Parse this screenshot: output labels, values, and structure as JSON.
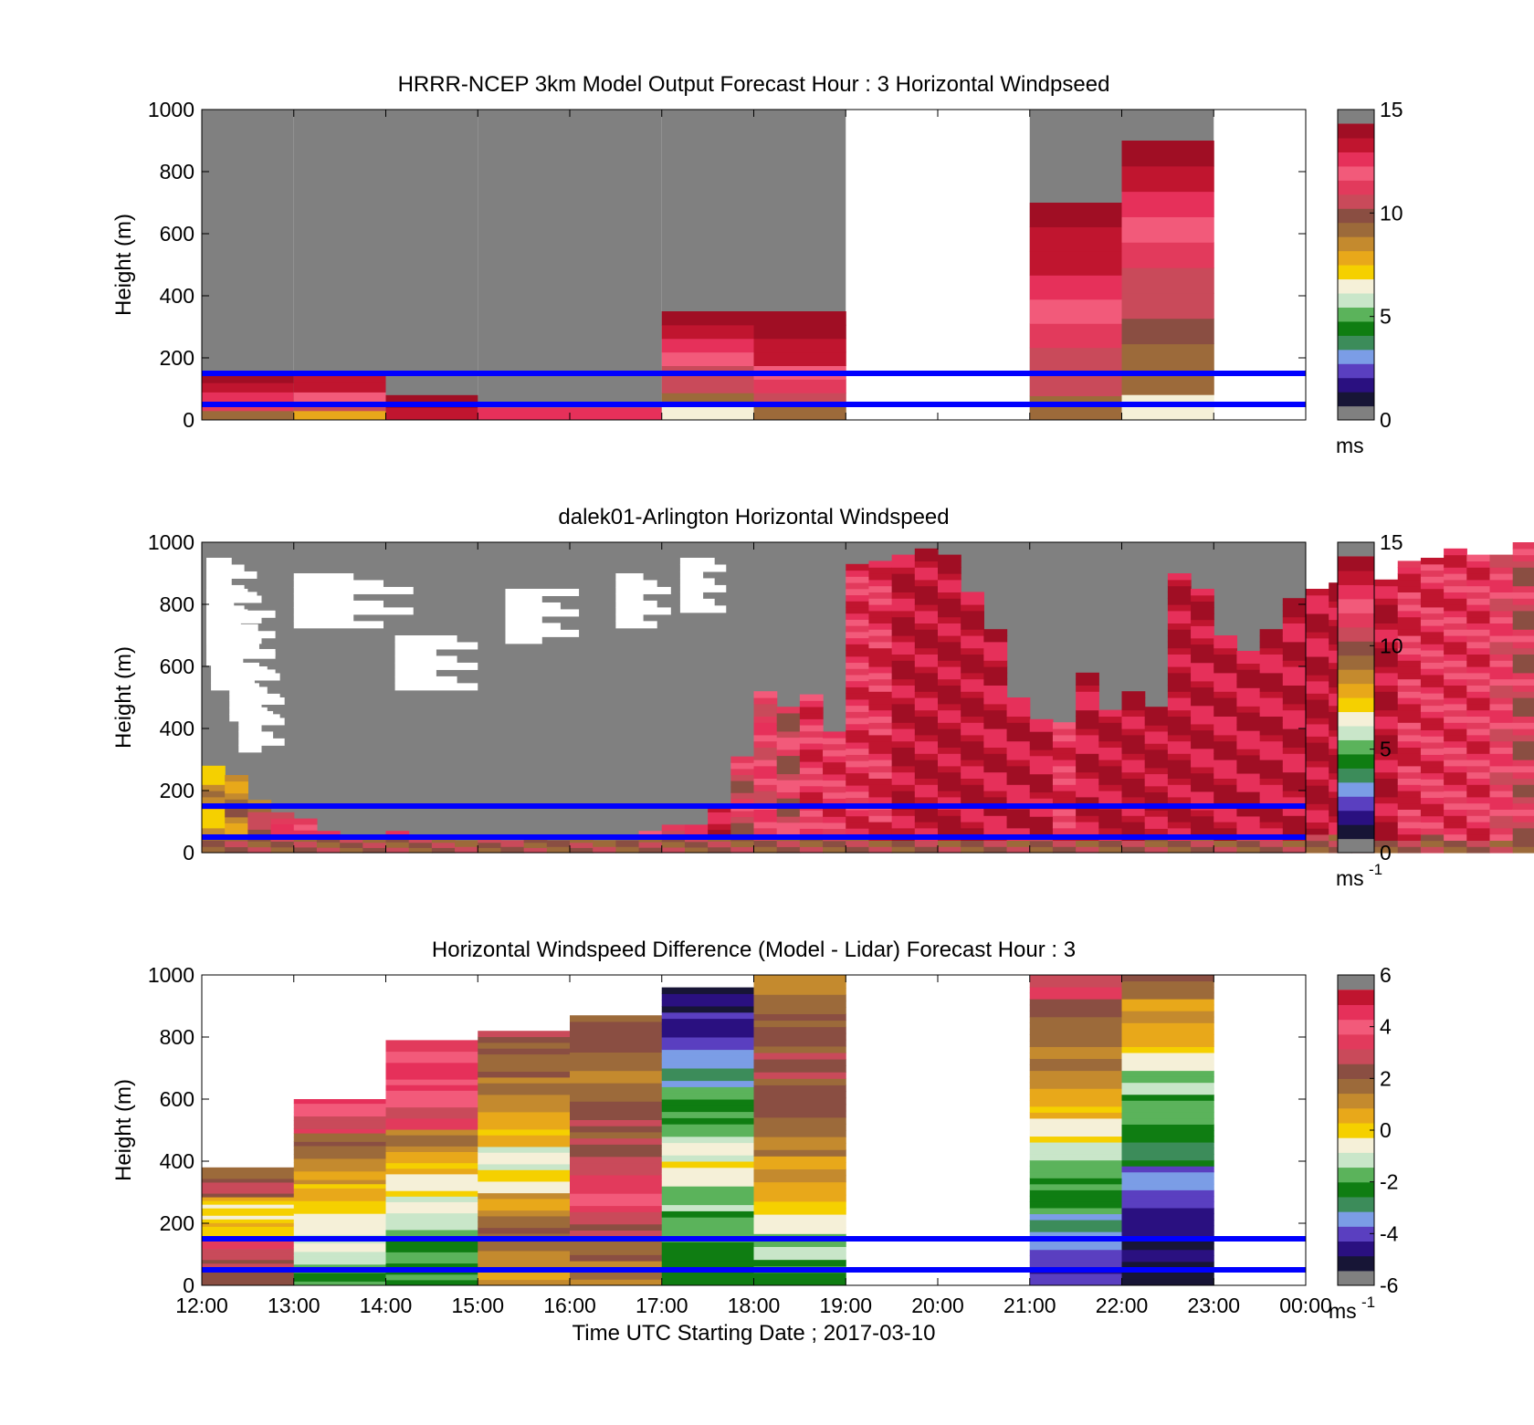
{
  "colormaps": {
    "windspeed": [
      "#171536",
      "#2a1080",
      "#5a3fc0",
      "#7b9de6",
      "#3c8c5a",
      "#0f7d12",
      "#5bb35b",
      "#c9e6c9",
      "#f5f0d8",
      "#f5d000",
      "#e8a81a",
      "#c48a2e",
      "#9c6a3a",
      "#8a4e42",
      "#c94a5a",
      "#e23a5c",
      "#f25a7a",
      "#e6305a",
      "#c0152f",
      "#a00e24"
    ],
    "difference": [
      "#171536",
      "#2a1080",
      "#5a3fc0",
      "#7b9de6",
      "#3c8c5a",
      "#0f7d12",
      "#5bb35b",
      "#c9e6c9",
      "#f5f0d8",
      "#f5d000",
      "#e8a81a",
      "#c48a2e",
      "#9c6a3a",
      "#8a4e42",
      "#c94a5a",
      "#e23a5c",
      "#f25a7a",
      "#e6305a",
      "#c0152f"
    ],
    "nodata": "#808080",
    "line_color": "#0000ff"
  },
  "shared": {
    "x_ticks": [
      "12:00",
      "13:00",
      "14:00",
      "15:00",
      "16:00",
      "17:00",
      "18:00",
      "19:00",
      "20:00",
      "21:00",
      "22:00",
      "23:00",
      "00:00"
    ],
    "y_ticks": [
      "0",
      "200",
      "400",
      "600",
      "800",
      "1000"
    ],
    "ylabel": "Height (m)",
    "xlabel": "Time UTC  Starting Date ; 2017-03-10",
    "blue_lines_m": [
      50,
      150
    ]
  },
  "chart_data": [
    {
      "type": "heatmap",
      "title": "HRRR-NCEP 3km Model Output   Forecast Hour : 3 Horizontal Windpseed",
      "ylabel": "Height (m)",
      "xlim_hours": [
        12,
        24
      ],
      "ylim": [
        0,
        1000
      ],
      "colorbar": {
        "range": [
          0,
          15
        ],
        "ticks": [
          "0",
          "5",
          "10",
          "15"
        ],
        "unit": "ms"
      },
      "columns": [
        {
          "hour": 12,
          "top_m": 150,
          "values": [
            9.5,
            11.5,
            13.0,
            14.0,
            14.5
          ]
        },
        {
          "hour": 13,
          "top_m": 150,
          "values": [
            7.5,
            10.5,
            12.5,
            13.5,
            14.0
          ]
        },
        {
          "hour": 14,
          "top_m": 80,
          "values": [
            13.5,
            14.5
          ]
        },
        {
          "hour": 15,
          "top_m": 40,
          "values": [
            13.0
          ]
        },
        {
          "hour": 16,
          "top_m": 40,
          "values": [
            13.0
          ]
        },
        {
          "hour": 17,
          "top_m": 350,
          "values": [
            6.0,
            9.5,
            10.5,
            11.0,
            12.0,
            13.0,
            14.0,
            14.5
          ]
        },
        {
          "hour": 18,
          "top_m": 350,
          "values": [
            9.5,
            10.5,
            11.5,
            12.5,
            13.5,
            13.5,
            14.5,
            14.5
          ]
        },
        {
          "hour": 19,
          "top_m": 0,
          "values": []
        },
        {
          "hour": 20,
          "top_m": 0,
          "values": []
        },
        {
          "hour": 21,
          "top_m": 700,
          "values": [
            9.5,
            10.5,
            11.0,
            11.5,
            12.0,
            13.0,
            13.5,
            14.0,
            14.5
          ]
        },
        {
          "hour": 22,
          "top_m": 900,
          "values": [
            6.0,
            9.5,
            9.5,
            10.0,
            10.5,
            11.0,
            11.5,
            12.0,
            13.0,
            14.0,
            14.5
          ]
        },
        {
          "hour": 23,
          "top_m": 0,
          "values": []
        }
      ],
      "grey_columns_hours": [
        12,
        13,
        14,
        15,
        16,
        17,
        18,
        21,
        22
      ]
    },
    {
      "type": "heatmap",
      "title": "dalek01-Arlington  Horizontal Windspeed",
      "ylabel": "Height (m)",
      "xlim_hours": [
        12,
        24
      ],
      "ylim": [
        0,
        1000
      ],
      "colorbar": {
        "range": [
          0,
          15
        ],
        "ticks": [
          "0",
          "5",
          "10",
          "15"
        ],
        "unit": "ms",
        "unit_sup": "-1"
      },
      "subcolumns_per_hour": 4,
      "profiles_top_m": [
        280,
        250,
        170,
        130,
        110,
        70,
        50,
        50,
        70,
        50,
        50,
        40,
        50,
        40,
        50,
        40,
        50,
        40,
        40,
        70,
        90,
        90,
        150,
        310,
        520,
        470,
        510,
        390,
        930,
        940,
        960,
        980,
        960,
        840,
        720,
        500,
        430,
        420,
        580,
        460,
        520,
        470,
        900,
        850,
        700,
        650,
        720,
        820,
        850,
        870,
        860,
        880,
        940,
        950,
        980,
        960,
        960,
        1000
      ],
      "profiles_base": [
        8,
        9,
        10,
        12,
        13,
        14,
        14,
        13,
        14,
        15,
        14,
        14,
        14,
        13,
        14,
        14,
        14,
        13,
        14,
        13,
        12,
        12,
        14,
        11,
        12,
        11,
        13,
        13,
        13,
        13,
        14,
        14,
        14,
        14,
        14,
        14,
        14,
        13,
        14,
        14,
        14,
        14,
        14,
        14,
        14,
        14,
        14,
        14,
        14,
        14,
        14,
        14,
        13,
        13,
        13,
        13,
        12,
        11
      ]
    },
    {
      "type": "heatmap",
      "title": "Horizontal Windspeed Difference (Model - Lidar) Forecast Hour : 3",
      "ylabel": "Height (m)",
      "xlabel": "Time UTC  Starting Date ; 2017-03-10",
      "xlim_hours": [
        12,
        24
      ],
      "ylim": [
        0,
        1000
      ],
      "colorbar": {
        "range": [
          -6,
          6
        ],
        "ticks": [
          "-6",
          "-4",
          "-2",
          "0",
          "2",
          "4",
          "6"
        ],
        "unit": "ms",
        "unit_sup": "-1"
      },
      "columns": [
        {
          "hour": 12,
          "top_m": 380,
          "values": [
            2.5,
            3.0,
            3.5,
            0.0,
            0.0,
            0.0,
            3.0,
            2.0
          ]
        },
        {
          "hour": 13,
          "top_m": 600,
          "values": [
            -2.0,
            -1.5,
            -1.0,
            -0.5,
            0.0,
            0.5,
            1.0,
            1.5,
            2.0,
            3.5,
            4.5
          ]
        },
        {
          "hour": 14,
          "top_m": 790,
          "values": [
            -2.5,
            -2.0,
            -1.5,
            -1.0,
            -0.5,
            0.5,
            1.5,
            3.5,
            4.5,
            5.0,
            4.0
          ]
        },
        {
          "hour": 15,
          "top_m": 820,
          "values": [
            1.0,
            1.5,
            2.0,
            1.0,
            -0.5,
            -1.0,
            0.5,
            1.0,
            1.5,
            2.0,
            2.5
          ]
        },
        {
          "hour": 16,
          "top_m": 870,
          "values": [
            1.5,
            2.0,
            3.0,
            4.0,
            3.5,
            3.0,
            2.5,
            2.0,
            1.5,
            2.0,
            2.5
          ]
        },
        {
          "hour": 17,
          "top_m": 960,
          "values": [
            -2.5,
            -2.5,
            -2.0,
            -1.5,
            -0.5,
            -1.0,
            -2.0,
            -2.0,
            -3.5,
            -4.0,
            -5.0,
            -5.5
          ]
        },
        {
          "hour": 18,
          "top_m": 1000,
          "values": [
            -2.5,
            -1.5,
            -0.5,
            0.5,
            1.0,
            1.5,
            2.0,
            2.5,
            3.0,
            2.5,
            2.0,
            1.5
          ]
        },
        {
          "hour": 19,
          "top_m": 0,
          "values": []
        },
        {
          "hour": 20,
          "top_m": 0,
          "values": []
        },
        {
          "hour": 21,
          "top_m": 1000,
          "values": [
            -4.5,
            -4.0,
            -3.5,
            -2.5,
            -2.0,
            -1.5,
            -0.5,
            0.5,
            1.0,
            1.5,
            2.0,
            2.5,
            3.5
          ]
        },
        {
          "hour": 22,
          "top_m": 1000,
          "values": [
            -6.0,
            -5.5,
            -5.0,
            -4.5,
            -4.0,
            -3.0,
            -2.5,
            -2.0,
            -1.5,
            -0.5,
            0.5,
            1.0,
            2.0
          ]
        },
        {
          "hour": 23,
          "top_m": 0,
          "values": []
        }
      ]
    }
  ]
}
